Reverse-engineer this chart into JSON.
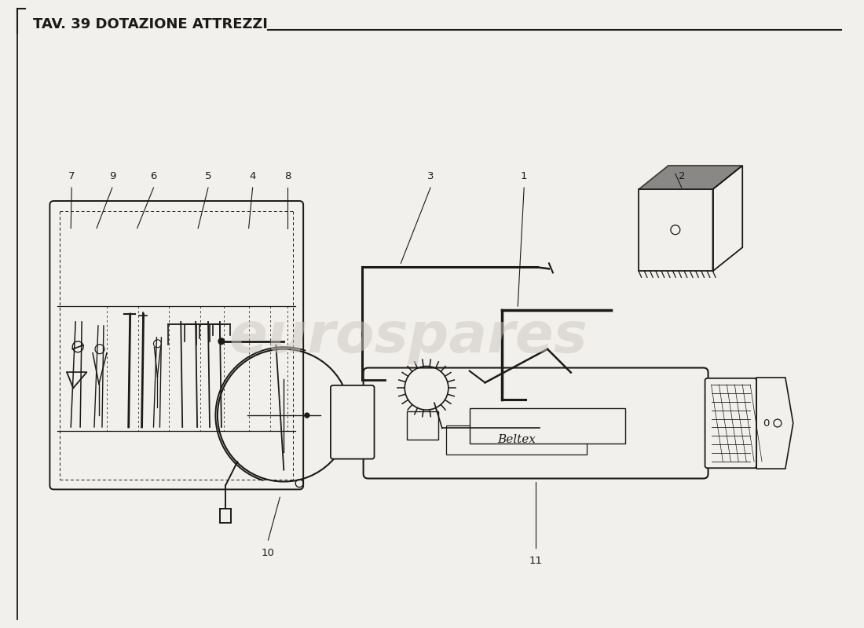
{
  "title": "TAV. 39 DOTAZIONE ATTREZZI",
  "bg_color": "#f2f0ec",
  "line_color": "#1a1a1a",
  "watermark_text": "eurospares",
  "watermark_color": "#ccc8c2",
  "fig_w": 11.0,
  "fig_h": 8.0,
  "dpi": 100
}
